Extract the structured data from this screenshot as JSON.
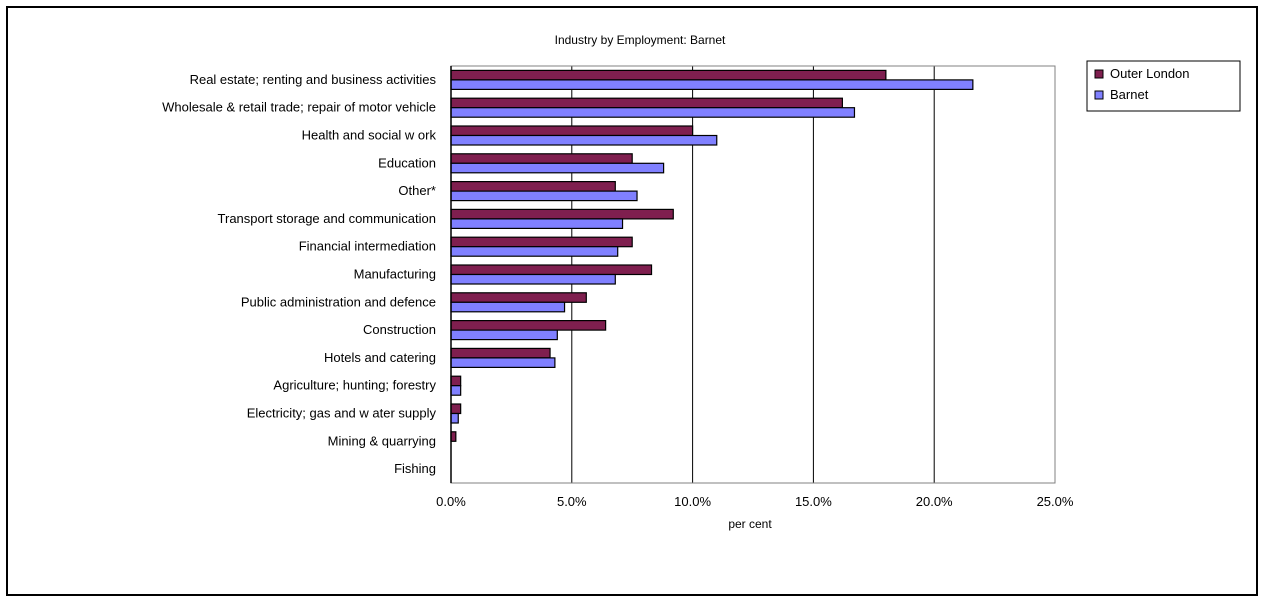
{
  "chart_data": {
    "type": "bar",
    "orientation": "horizontal",
    "title": "Industry by Employment: Barnet",
    "xlabel": "per cent",
    "ylabel": "",
    "xlim": [
      0,
      25
    ],
    "x_ticks": [
      "0.0%",
      "5.0%",
      "10.0%",
      "15.0%",
      "20.0%",
      "25.0%"
    ],
    "grid": "vertical",
    "legend_position": "top-right",
    "categories": [
      "Real estate; renting and business activities",
      "Wholesale & retail trade; repair of motor vehicle",
      "Health and social w ork",
      "Education",
      "Other*",
      "Transport storage and communication",
      "Financial intermediation",
      "Manufacturing",
      "Public administration and defence",
      "Construction",
      "Hotels and catering",
      "Agriculture; hunting; forestry",
      "Electricity; gas and w ater supply",
      "Mining & quarrying",
      "Fishing"
    ],
    "series": [
      {
        "name": "Outer London",
        "color": "#7f1f4f",
        "values": [
          18.0,
          16.2,
          10.0,
          7.5,
          6.8,
          9.2,
          7.5,
          8.3,
          5.6,
          6.4,
          4.1,
          0.4,
          0.4,
          0.2,
          0.0
        ]
      },
      {
        "name": "Barnet",
        "color": "#8080ff",
        "values": [
          21.6,
          16.7,
          11.0,
          8.8,
          7.7,
          7.1,
          6.9,
          6.8,
          4.7,
          4.4,
          4.3,
          0.4,
          0.3,
          0.0,
          0.0
        ]
      }
    ]
  }
}
